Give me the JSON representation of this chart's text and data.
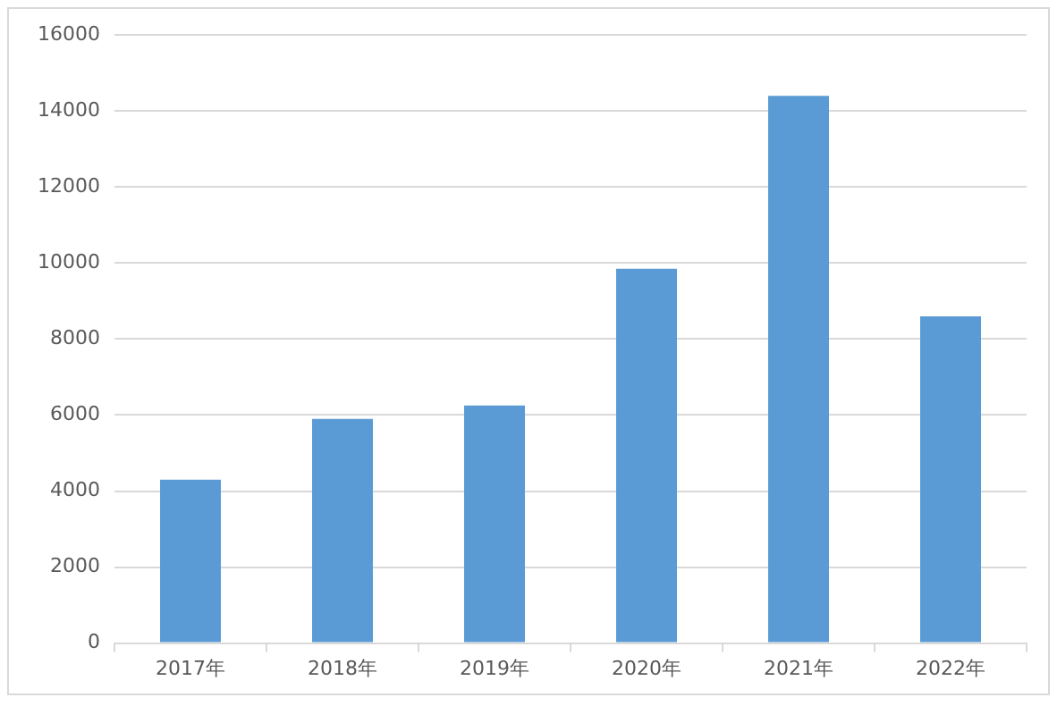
{
  "chart_data": {
    "type": "bar",
    "categories": [
      "2017年",
      "2018年",
      "2019年",
      "2020年",
      "2021年",
      "2022年"
    ],
    "values": [
      4300,
      5900,
      6250,
      9850,
      14400,
      8600
    ],
    "color": "#5b9bd5",
    "ylim": [
      0,
      16000
    ],
    "yticks": [
      0,
      2000,
      4000,
      6000,
      8000,
      10000,
      12000,
      14000,
      16000
    ],
    "grid": "y",
    "legend": false
  }
}
